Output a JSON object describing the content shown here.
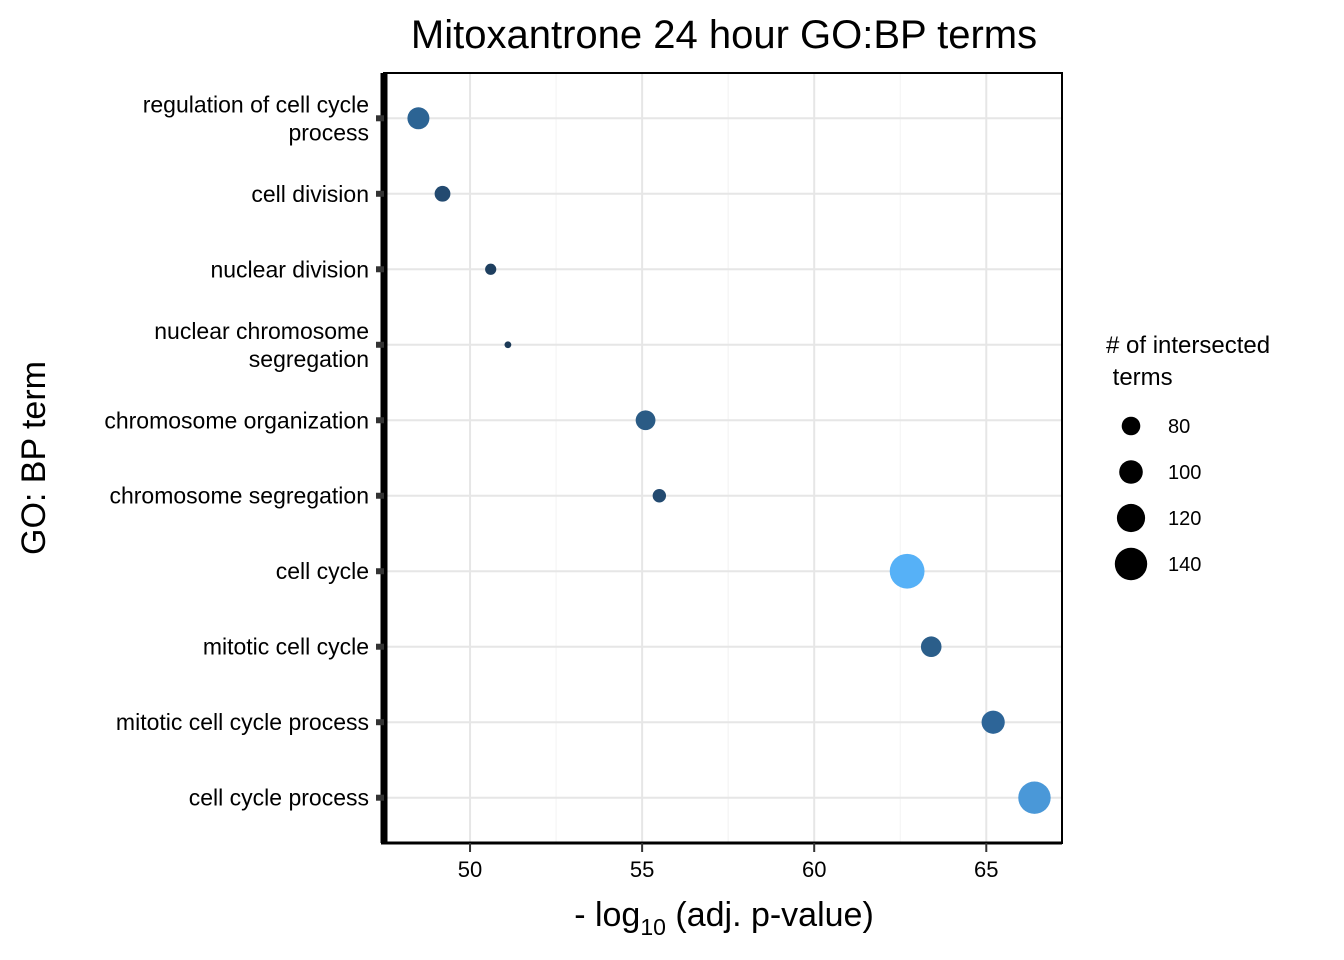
{
  "chart_data": {
    "type": "scatter",
    "title": "Mitoxantrone 24 hour GO:BP terms",
    "xlabel": {
      "prefix": "- log",
      "subscript": "10",
      "suffix": " (adj. p-value)"
    },
    "ylabel": "GO: BP term",
    "xlim": [
      47.5,
      67.2
    ],
    "xticks": [
      50,
      55,
      60,
      65
    ],
    "grid": true,
    "legend_position": "right",
    "legend": {
      "title_lines": [
        "# of intersected",
        " terms"
      ],
      "sizes": [
        80,
        100,
        120,
        140
      ]
    },
    "points": [
      {
        "label_lines": [
          "regulation of cell cycle",
          "process"
        ],
        "x": 48.5,
        "count": 93,
        "color": "#2c6494"
      },
      {
        "label_lines": [
          "cell division"
        ],
        "x": 49.2,
        "count": 70,
        "color": "#234a70"
      },
      {
        "label_lines": [
          "nuclear division"
        ],
        "x": 50.6,
        "count": 55,
        "color": "#1e3f5f"
      },
      {
        "label_lines": [
          "nuclear chromosome",
          "segregation"
        ],
        "x": 51.1,
        "count": 42,
        "color": "#1b3956"
      },
      {
        "label_lines": [
          "chromosome organization"
        ],
        "x": 55.1,
        "count": 85,
        "color": "#2a5b85"
      },
      {
        "label_lines": [
          "chromosome segregation"
        ],
        "x": 55.5,
        "count": 62,
        "color": "#234a70"
      },
      {
        "label_lines": [
          "cell cycle"
        ],
        "x": 62.7,
        "count": 152,
        "color": "#56b1f7"
      },
      {
        "label_lines": [
          "mitotic cell cycle"
        ],
        "x": 63.4,
        "count": 88,
        "color": "#2b5e8a"
      },
      {
        "label_lines": [
          "mitotic cell cycle process"
        ],
        "x": 65.2,
        "count": 98,
        "color": "#2d6598"
      },
      {
        "label_lines": [
          "cell cycle process"
        ],
        "x": 66.4,
        "count": 140,
        "color": "#4a98d8"
      }
    ]
  }
}
